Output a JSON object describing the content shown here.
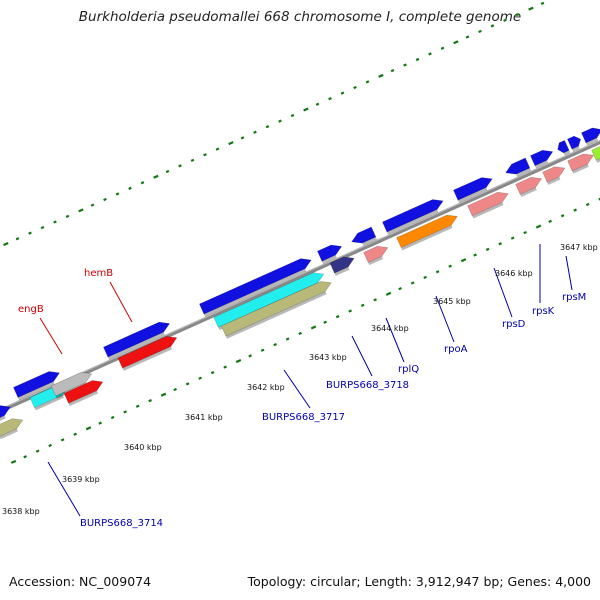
{
  "title": "Burkholderia pseudomallei 668 chromosome I, complete genome",
  "footer": {
    "accession": "Accession: NC_009074",
    "summary": "Topology: circular; Length: 3,912,947 bp; Genes: 4,000"
  },
  "scale_ticks": [
    "3638 kbp",
    "3639 kbp",
    "3640 kbp",
    "3641 kbp",
    "3642 kbp",
    "3643 kbp",
    "3644 kbp",
    "3645 kbp",
    "3646 kbp",
    "3647 kbp"
  ],
  "gene_labels": [
    {
      "name": "engB",
      "color": "#cc0000"
    },
    {
      "name": "hemB",
      "color": "#cc0000"
    },
    {
      "name": "BURPS668_3714",
      "color": "#0000aa"
    },
    {
      "name": "BURPS668_3717",
      "color": "#0000aa"
    },
    {
      "name": "BURPS668_3718",
      "color": "#0000aa"
    },
    {
      "name": "rplQ",
      "color": "#0000aa"
    },
    {
      "name": "rpoA",
      "color": "#0000aa"
    },
    {
      "name": "rpsD",
      "color": "#0000aa"
    },
    {
      "name": "rpsK",
      "color": "#0000aa"
    },
    {
      "name": "rpsM",
      "color": "#0000aa"
    }
  ],
  "colors": {
    "blue_gene": "#1010e0",
    "red_gene": "#ee1111",
    "cyan_gene": "#22eeee",
    "olive_gene": "#b8b878",
    "salmon_gene": "#ee8888",
    "orange_gene": "#ff8800",
    "gray_gene": "#bbbbbb",
    "navy_gene": "#333388",
    "green_gene": "#99ee33",
    "backbone": "#777777",
    "dots": "#117711"
  }
}
